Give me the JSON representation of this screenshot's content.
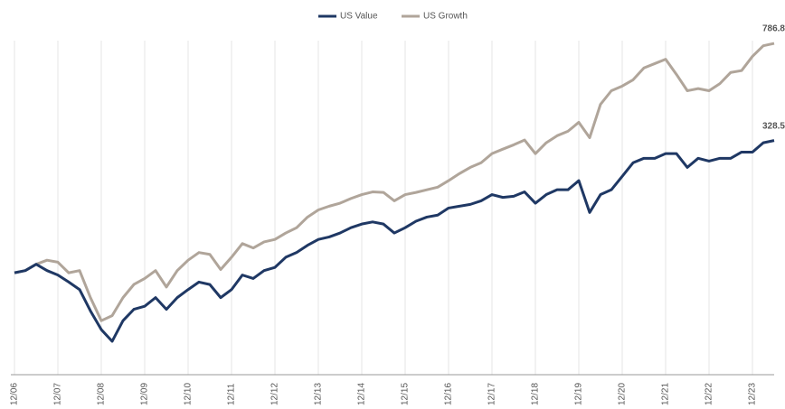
{
  "chart_data": {
    "type": "line",
    "categories": [
      "12/06",
      null,
      null,
      null,
      "12/07",
      null,
      null,
      null,
      "12/08",
      null,
      null,
      null,
      "12/09",
      null,
      null,
      null,
      "12/10",
      null,
      null,
      null,
      "12/11",
      null,
      null,
      null,
      "12/12",
      null,
      null,
      null,
      "12/13",
      null,
      null,
      null,
      "12/14",
      null,
      null,
      null,
      "12/15",
      null,
      null,
      null,
      "12/16",
      null,
      null,
      null,
      "12/17",
      null,
      null,
      null,
      "12/18",
      null,
      null,
      null,
      "12/19",
      null,
      null,
      null,
      "12/20",
      null,
      null,
      null,
      "12/21",
      null,
      null,
      null,
      "12/22",
      null,
      null,
      null,
      "12/23",
      null,
      null
    ],
    "series": [
      {
        "name": "US Value",
        "color": "#1f3864",
        "values": [
          100,
          102,
          108,
          102,
          98,
          92,
          86,
          71,
          60,
          54,
          65,
          72,
          74,
          80,
          72,
          80,
          86,
          92,
          90,
          80,
          86,
          98,
          95,
          102,
          105,
          115,
          120,
          128,
          135,
          138,
          143,
          150,
          155,
          158,
          155,
          143,
          150,
          159,
          165,
          168,
          179,
          182,
          185,
          191,
          202,
          197,
          199,
          207,
          187,
          202,
          211,
          211,
          229,
          172,
          202,
          211,
          238,
          269,
          280,
          280,
          292,
          292,
          258,
          280,
          273,
          280,
          280,
          296,
          296,
          322,
          328.5
        ]
      },
      {
        "name": "US Growth",
        "color": "#b0a59a",
        "values": [
          100,
          102,
          108,
          112,
          110,
          100,
          102,
          80,
          65,
          68,
          80,
          90,
          95,
          102,
          88,
          102,
          112,
          120,
          118,
          103,
          115,
          130,
          125,
          132,
          135,
          143,
          150,
          165,
          176,
          182,
          187,
          195,
          202,
          207,
          206,
          191,
          202,
          206,
          211,
          216,
          229,
          244,
          258,
          269,
          292,
          304,
          316,
          330,
          292,
          322,
          343,
          357,
          387,
          337,
          455,
          514,
          536,
          567,
          631,
          656,
          682,
          595,
          514,
          524,
          514,
          548,
          606,
          616,
          700,
          770,
          786.8
        ]
      }
    ],
    "ylim": [
      40,
      840
    ],
    "log_scale": true,
    "grid": true,
    "legend": "top"
  }
}
